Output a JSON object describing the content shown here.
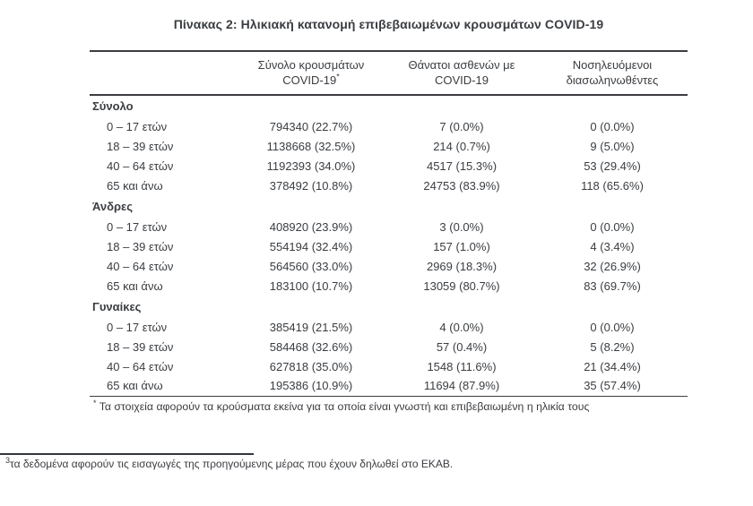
{
  "colors": {
    "text": "#3a3d41",
    "border": "#3a3d41",
    "background": "#ffffff"
  },
  "title": "Πίνακας 2: Ηλικιακή κατανομή επιβεβαιωμένων κρουσμάτων COVID-19",
  "table": {
    "columns": [
      {
        "line1": "Σύνολο κρουσμάτων",
        "line2": "COVID-19",
        "marker": "*"
      },
      {
        "line1": "Θάνατοι ασθενών με",
        "line2": "COVID-19",
        "marker": ""
      },
      {
        "line1": "Νοσηλευόμενοι",
        "line2": "διασωληνωθέντες",
        "marker": ""
      }
    ],
    "sections": [
      {
        "label": "Σύνολο",
        "rows": [
          {
            "label": "0 – 17 ετών",
            "cases": "794340 (22.7%)",
            "deaths": "7 (0.0%)",
            "intubated": "0 (0.0%)"
          },
          {
            "label": "18 – 39 ετών",
            "cases": "1138668 (32.5%)",
            "deaths": "214 (0.7%)",
            "intubated": "9 (5.0%)"
          },
          {
            "label": "40 – 64 ετών",
            "cases": "1192393 (34.0%)",
            "deaths": "4517 (15.3%)",
            "intubated": "53 (29.4%)"
          },
          {
            "label": "65 και άνω",
            "cases": "378492 (10.8%)",
            "deaths": "24753 (83.9%)",
            "intubated": "118 (65.6%)"
          }
        ]
      },
      {
        "label": "Άνδρες",
        "rows": [
          {
            "label": "0 – 17 ετών",
            "cases": "408920 (23.9%)",
            "deaths": "3 (0.0%)",
            "intubated": "0 (0.0%)"
          },
          {
            "label": "18 – 39 ετών",
            "cases": "554194 (32.4%)",
            "deaths": "157 (1.0%)",
            "intubated": "4 (3.4%)"
          },
          {
            "label": "40 – 64 ετών",
            "cases": "564560 (33.0%)",
            "deaths": "2969 (18.3%)",
            "intubated": "32 (26.9%)"
          },
          {
            "label": "65 και άνω",
            "cases": "183100 (10.7%)",
            "deaths": "13059 (80.7%)",
            "intubated": "83 (69.7%)"
          }
        ]
      },
      {
        "label": "Γυναίκες",
        "rows": [
          {
            "label": "0 – 17 ετών",
            "cases": "385419 (21.5%)",
            "deaths": "4 (0.0%)",
            "intubated": "0 (0.0%)"
          },
          {
            "label": "18 – 39 ετών",
            "cases": "584468 (32.6%)",
            "deaths": "57 (0.4%)",
            "intubated": "5 (8.2%)"
          },
          {
            "label": "40 – 64 ετών",
            "cases": "627818 (35.0%)",
            "deaths": "1548 (11.6%)",
            "intubated": "21 (34.4%)"
          },
          {
            "label": "65 και άνω",
            "cases": "195386 (10.9%)",
            "deaths": "11694 (87.9%)",
            "intubated": "35 (57.4%)"
          }
        ]
      }
    ],
    "footnote_marker": "*",
    "footnote": "Τα στοιχεία αφορούν τα κρούσματα εκείνα για τα οποία είναι γνωστή και επιβεβαιωμένη η ηλικία τους"
  },
  "page_footnote": {
    "marker": "3",
    "text": "τα δεδομένα αφορούν τις εισαγωγές της προηγούμενης μέρας που έχουν δηλωθεί στο ΕΚΑΒ."
  }
}
